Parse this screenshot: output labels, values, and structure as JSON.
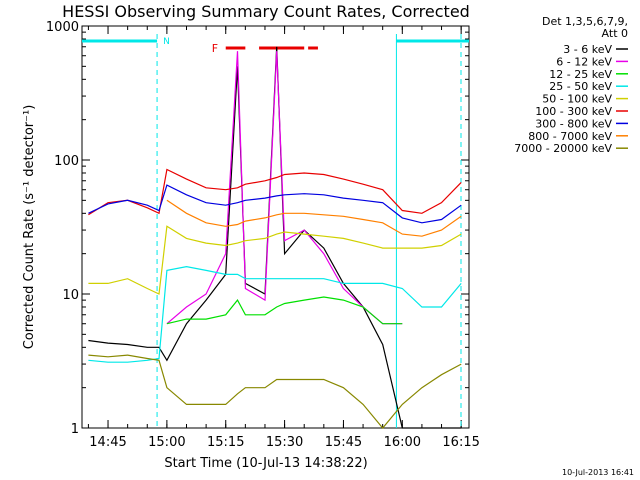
{
  "chart_data": {
    "type": "line",
    "title": "HESSI Observing Summary Count Rates, Corrected",
    "xlabel": "Start Time (10-Jul-13 14:38:22)",
    "ylabel": "Corrected Count Rate (s⁻¹ detector⁻¹)",
    "yscale": "log",
    "ylim": [
      1,
      1000
    ],
    "xlim": [
      "14:38:22",
      "16:17:00"
    ],
    "x_ticks": [
      "14:45",
      "15:00",
      "15:15",
      "15:30",
      "15:45",
      "16:00",
      "16:15"
    ],
    "y_ticks": [
      "1",
      "10",
      "100",
      "1000"
    ],
    "legend_header": [
      "Det 1,3,5,6,7,9,",
      "Att 0"
    ],
    "x": [
      "14:40",
      "14:45",
      "14:50",
      "14:55",
      "14:58",
      "15:00",
      "15:05",
      "15:10",
      "15:15",
      "15:18",
      "15:20",
      "15:25",
      "15:28",
      "15:30",
      "15:35",
      "15:40",
      "15:45",
      "15:50",
      "15:55",
      "16:00",
      "16:05",
      "16:10",
      "16:15"
    ],
    "series": [
      {
        "name": "3 - 6 keV",
        "color": "#000000",
        "values": [
          4.5,
          4.3,
          4.2,
          4.0,
          4.0,
          3.2,
          6,
          9,
          14,
          500,
          12,
          10,
          700,
          20,
          30,
          22,
          12,
          8,
          4.2,
          1.0,
          1.0,
          1.0,
          1.0
        ]
      },
      {
        "name": "6 - 12 keV",
        "color": "#e800e8",
        "values": [
          null,
          null,
          null,
          null,
          null,
          6,
          8,
          10,
          20,
          650,
          11,
          9,
          650,
          25,
          30,
          20,
          11,
          8,
          6,
          6,
          null,
          null,
          null
        ]
      },
      {
        "name": "12 - 25 keV",
        "color": "#00e000",
        "values": [
          null,
          null,
          null,
          null,
          null,
          6,
          6.5,
          6.5,
          7,
          9,
          7,
          7,
          8,
          8.5,
          9,
          9.5,
          9,
          8,
          6,
          6,
          null,
          null,
          null
        ]
      },
      {
        "name": "25 - 50 keV",
        "color": "#00e8e8",
        "values": [
          3.2,
          3.1,
          3.1,
          3.2,
          3.3,
          15,
          16,
          15,
          14,
          14,
          13,
          13,
          13,
          13,
          13,
          13,
          12,
          12,
          12,
          11,
          8,
          8,
          12
        ]
      },
      {
        "name": "50 - 100 keV",
        "color": "#d0d000",
        "values": [
          12,
          12,
          13,
          11,
          10,
          32,
          26,
          24,
          23,
          24,
          25,
          26,
          28,
          29,
          28,
          27,
          26,
          24,
          22,
          22,
          22,
          23,
          28
        ]
      },
      {
        "name": "100 - 300 keV",
        "color": "#e80000",
        "values": [
          39,
          48,
          50,
          44,
          40,
          85,
          72,
          62,
          60,
          62,
          66,
          70,
          74,
          78,
          80,
          78,
          72,
          66,
          60,
          42,
          40,
          48,
          68
        ]
      },
      {
        "name": "300 - 800 keV",
        "color": "#0000e0",
        "values": [
          40,
          47,
          50,
          46,
          42,
          65,
          55,
          48,
          46,
          48,
          50,
          52,
          54,
          55,
          56,
          55,
          52,
          50,
          48,
          37,
          34,
          36,
          46
        ]
      },
      {
        "name": "800 - 7000 keV",
        "color": "#ff8000",
        "values": [
          null,
          null,
          null,
          null,
          null,
          50,
          40,
          34,
          32,
          33,
          35,
          37,
          39,
          40,
          40,
          39,
          38,
          36,
          34,
          28,
          27,
          30,
          38
        ]
      },
      {
        "name": "7000 - 20000 keV",
        "color": "#888800",
        "values": [
          3.5,
          3.4,
          3.5,
          3.3,
          3.2,
          2,
          1.5,
          1.5,
          1.5,
          1.8,
          2,
          2,
          2.3,
          2.3,
          2.3,
          2.3,
          2,
          1.5,
          1.0,
          1.5,
          2,
          2.5,
          3
        ]
      }
    ],
    "annotations": {
      "saa_label": "N",
      "flare_label": "F",
      "saa_intervals": [
        [
          "14:38:22",
          "14:57:30"
        ],
        [
          "15:58:30",
          "16:17:00"
        ]
      ],
      "saa_color": "#00e8e8",
      "flare_intervals": [
        [
          "15:15:00",
          "15:20:00"
        ],
        [
          "15:23:30",
          "15:35:00"
        ],
        [
          "15:36:00",
          "15:38:30"
        ]
      ],
      "flare_color": "#e80000"
    },
    "grid": false,
    "legend_position": "right"
  },
  "footer": {
    "timestamp": "10-Jul-2013 16:41"
  }
}
